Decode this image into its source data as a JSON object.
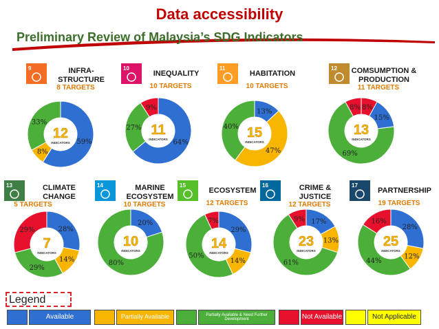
{
  "title": "Data accessibility",
  "subtitle": "Preliminary Review of Malaysia’s SDG Indicators",
  "colors": {
    "available": "#2e6fd1",
    "partially_available": "#f7b500",
    "partially_available_need_further_development": "#4caf3a",
    "not_available": "#e8112d",
    "not_applicable": "#ffff00",
    "title": "#c00000",
    "subtitle": "#3b6e2a",
    "target_text": "#e07b00"
  },
  "legend": {
    "title": "Legend",
    "items": [
      {
        "label": "Available",
        "color": "#2e6fd1",
        "text_color": "#ffffff"
      },
      {
        "label": "Partially Available",
        "color": "#f7b500",
        "text_color": "#ffffff"
      },
      {
        "label": "Partially Available & Need Further Development",
        "color": "#4caf3a",
        "text_color": "#ffffff"
      },
      {
        "label": "Not Available",
        "color": "#e8112d",
        "text_color": "#ffffff"
      },
      {
        "label": "Not Applicable",
        "color": "#ffff00",
        "text_color": "#222222"
      }
    ]
  },
  "chart_data": [
    {
      "type": "pie",
      "goal": 9,
      "name": "INFRA- STRUCTURE",
      "targets": "8 TARGETS",
      "indicators": "12",
      "center_label": "INDICATORS",
      "icon_color": "#f36d25",
      "slices": [
        {
          "category": "available",
          "value": 59
        },
        {
          "category": "partially_available",
          "value": 8
        },
        {
          "category": "partially_available_need_further_development",
          "value": 33
        }
      ]
    },
    {
      "type": "pie",
      "goal": 10,
      "name": "INEQUALITY",
      "targets": "10 TARGETS",
      "indicators": "11",
      "center_label": "INDICATORS",
      "icon_color": "#dd1367",
      "slices": [
        {
          "category": "available",
          "value": 64
        },
        {
          "category": "partially_available_need_further_development",
          "value": 27
        },
        {
          "category": "not_available",
          "value": 9
        }
      ]
    },
    {
      "type": "pie",
      "goal": 11,
      "name": "HABITATION",
      "targets": "10 TARGETS",
      "indicators": "15",
      "center_label": "INDICATORS",
      "icon_color": "#fd9d24",
      "slices": [
        {
          "category": "available",
          "value": 13
        },
        {
          "category": "partially_available",
          "value": 47
        },
        {
          "category": "partially_available_need_further_development",
          "value": 40
        }
      ]
    },
    {
      "type": "pie",
      "goal": 12,
      "name": "COMSUMPTION & PRODUCTION",
      "targets": "11 TARGETS",
      "indicators": "13",
      "center_label": "INDICATORS",
      "icon_color": "#bf8b2e",
      "slices": [
        {
          "category": "not_available",
          "value": 8
        },
        {
          "category": "available",
          "value": 15
        },
        {
          "category": "partially_available_need_further_development",
          "value": 69
        },
        {
          "category": "not_available",
          "value": 8
        }
      ]
    },
    {
      "type": "pie",
      "goal": 13,
      "name": "CLIMATE CHANGE",
      "targets": "5 TARGETS",
      "indicators": "7",
      "center_label": "INDICATORS",
      "icon_color": "#3f7e44",
      "slices": [
        {
          "category": "available",
          "value": 28
        },
        {
          "category": "partially_available",
          "value": 14
        },
        {
          "category": "partially_available_need_further_development",
          "value": 29
        },
        {
          "category": "not_available",
          "value": 29
        }
      ]
    },
    {
      "type": "pie",
      "goal": 14,
      "name": "MARINE ECOSYSTEM",
      "targets": "10 TARGETS",
      "indicators": "10",
      "center_label": "INDICATORS",
      "icon_color": "#0a97d9",
      "slices": [
        {
          "category": "available",
          "value": 20
        },
        {
          "category": "partially_available_need_further_development",
          "value": 80
        }
      ]
    },
    {
      "type": "pie",
      "goal": 15,
      "name": "ECOSYSTEM",
      "targets": "12 TARGETS",
      "indicators": "14",
      "center_label": "INDICATORS",
      "icon_color": "#56c02b",
      "slices": [
        {
          "category": "available",
          "value": 29
        },
        {
          "category": "partially_available",
          "value": 14
        },
        {
          "category": "partially_available_need_further_development",
          "value": 50
        },
        {
          "category": "not_available",
          "value": 7
        }
      ]
    },
    {
      "type": "pie",
      "goal": 16,
      "name": "CRIME & JUSTICE",
      "targets": "12 TARGETS",
      "indicators": "23",
      "center_label": "INDICATORS",
      "icon_color": "#00689d",
      "slices": [
        {
          "category": "available",
          "value": 17
        },
        {
          "category": "partially_available",
          "value": 13
        },
        {
          "category": "partially_available_need_further_development",
          "value": 61
        },
        {
          "category": "not_available",
          "value": 9
        }
      ]
    },
    {
      "type": "pie",
      "goal": 17,
      "name": "PARTNERSHIP",
      "targets": "19 TARGETS",
      "indicators": "25",
      "center_label": "INDICATORS",
      "icon_color": "#19486a",
      "slices": [
        {
          "category": "available",
          "value": 28
        },
        {
          "category": "partially_available",
          "value": 12
        },
        {
          "category": "partially_available_need_further_development",
          "value": 44
        },
        {
          "category": "not_available",
          "value": 16
        }
      ]
    }
  ]
}
